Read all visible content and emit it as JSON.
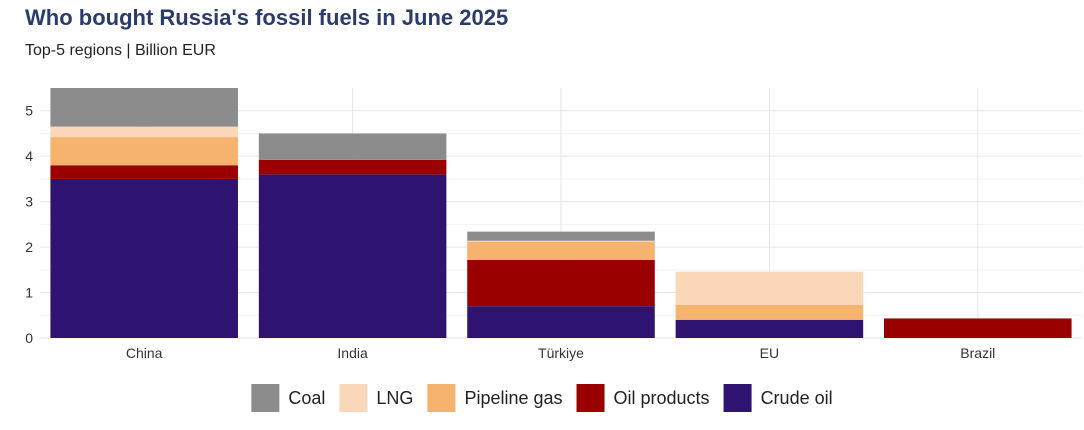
{
  "chart_data": {
    "type": "bar",
    "stacked": true,
    "title": "Who bought Russia's fossil fuels in June 2025",
    "subtitle": "Top-5 regions | Billion EUR",
    "xlabel": "",
    "ylabel": "",
    "categories": [
      "China",
      "India",
      "Türkiye",
      "EU",
      "Brazil"
    ],
    "ylim": [
      0,
      5.5
    ],
    "yticks": [
      0,
      1,
      2,
      3,
      4,
      5
    ],
    "grid": true,
    "legend_position": "bottom",
    "series": [
      {
        "name": "Crude oil",
        "color": "#2e1470",
        "values": [
          3.5,
          3.6,
          0.7,
          0.4,
          0.0
        ]
      },
      {
        "name": "Oil products",
        "color": "#9b0000",
        "values": [
          0.3,
          0.32,
          1.02,
          0.0,
          0.43
        ]
      },
      {
        "name": "Pipeline gas",
        "color": "#f5b36e",
        "values": [
          0.62,
          0.0,
          0.4,
          0.33,
          0.0
        ]
      },
      {
        "name": "LNG",
        "color": "#fad7b8",
        "values": [
          0.23,
          0.0,
          0.02,
          0.73,
          0.0
        ]
      },
      {
        "name": "Coal",
        "color": "#8c8c8c",
        "values": [
          0.85,
          0.58,
          0.2,
          0.0,
          0.0
        ]
      }
    ],
    "legend_order": [
      "Coal",
      "LNG",
      "Pipeline gas",
      "Oil products",
      "Crude oil"
    ]
  }
}
